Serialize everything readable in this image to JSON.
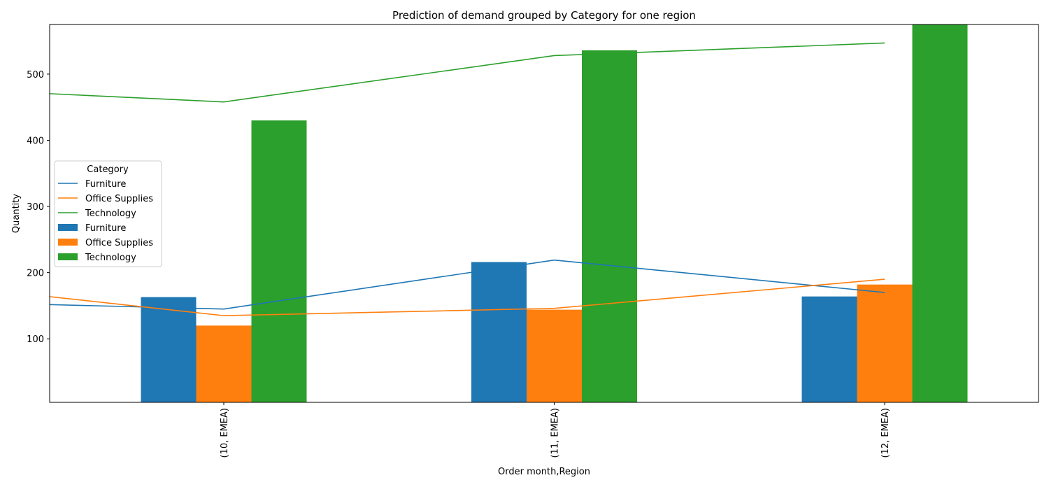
{
  "chart_data": {
    "type": "bar",
    "title": "Prediction of demand grouped by Category for one region",
    "xlabel": "Order month,Region",
    "ylabel": "Quantity",
    "categories": [
      "(10, EMEA)",
      "(11, EMEA)",
      "(12, EMEA)"
    ],
    "ylim": [
      4,
      575
    ],
    "yticks": [
      100,
      200,
      300,
      400,
      500
    ],
    "grid": false,
    "legend": {
      "title": "Category",
      "placement": "center-left",
      "entries": [
        {
          "label": "Furniture",
          "kind": "line",
          "color": "#1f77b4"
        },
        {
          "label": "Office Supplies",
          "kind": "line",
          "color": "#ff7f0e"
        },
        {
          "label": "Technology",
          "kind": "line",
          "color": "#2ca02c"
        },
        {
          "label": "Furniture",
          "kind": "bar",
          "color": "#1f77b4"
        },
        {
          "label": "Office Supplies",
          "kind": "bar",
          "color": "#ff7f0e"
        },
        {
          "label": "Technology",
          "kind": "bar",
          "color": "#2ca02c"
        }
      ]
    },
    "bar_series": [
      {
        "name": "Furniture",
        "color": "#1f77b4",
        "values": [
          163,
          216,
          164
        ]
      },
      {
        "name": "Office Supplies",
        "color": "#ff7f0e",
        "values": [
          120,
          144,
          182
        ]
      },
      {
        "name": "Technology",
        "color": "#2ca02c",
        "values": [
          430,
          536,
          640
        ]
      }
    ],
    "line_series": [
      {
        "name": "Furniture",
        "color": "#1f77b4",
        "x": [
          -0.55,
          0,
          1,
          2
        ],
        "values": [
          152,
          145,
          219,
          170
        ]
      },
      {
        "name": "Office Supplies",
        "color": "#ff7f0e",
        "x": [
          -0.55,
          0,
          1,
          2
        ],
        "values": [
          165,
          135,
          146,
          190
        ]
      },
      {
        "name": "Technology",
        "color": "#2ca02c",
        "x": [
          -0.55,
          0,
          1,
          2
        ],
        "values": [
          471,
          458,
          528,
          547
        ]
      }
    ]
  }
}
